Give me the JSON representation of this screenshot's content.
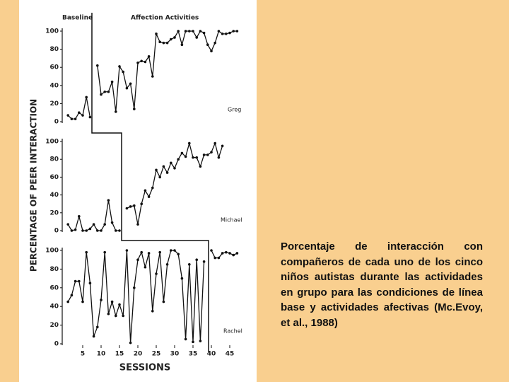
{
  "figure": {
    "ylabel": "PERCENTAGE OF PEER INTERACTION",
    "xlabel": "SESSIONS",
    "phases": [
      "Baseline",
      "Affection Activities"
    ]
  },
  "caption": "Porcentaje de interacción con compañeros de cada uno de los cinco niños autistas durante las actividades en grupo para las condiciones de línea base y actividades afectivas (Mc.Evoy, et al., 1988)",
  "chart_data": [
    {
      "type": "line",
      "label": "Greg",
      "color": "#111111",
      "x": [
        1,
        2,
        3,
        4,
        5,
        6,
        7,
        8,
        9,
        10,
        11,
        12,
        13,
        14,
        15,
        16,
        17,
        18,
        19,
        20,
        21,
        22,
        23,
        24,
        25,
        26,
        27,
        28,
        29,
        30,
        31,
        32,
        33,
        34,
        35,
        36,
        37,
        38,
        39,
        40,
        41,
        42,
        43,
        44,
        45,
        46,
        47
      ],
      "values": [
        7,
        3,
        3,
        10,
        7,
        27,
        5,
        null,
        62,
        30,
        33,
        33,
        44,
        11,
        61,
        55,
        37,
        42,
        14,
        65,
        67,
        66,
        72,
        50,
        97,
        88,
        87,
        87,
        91,
        93,
        100,
        85,
        100,
        100,
        100,
        93,
        100,
        98,
        85,
        78,
        87,
        100,
        97,
        97,
        98,
        100,
        100
      ],
      "xlim": [
        0,
        48
      ],
      "ylim": [
        0,
        100
      ],
      "yticks": [
        0,
        20,
        40,
        60,
        80,
        100
      ]
    },
    {
      "type": "line",
      "label": "Michael",
      "color": "#111111",
      "x": [
        1,
        2,
        3,
        4,
        5,
        6,
        7,
        8,
        9,
        10,
        11,
        12,
        13,
        14,
        15,
        16,
        17,
        18,
        19,
        20,
        21,
        22,
        23,
        24,
        25,
        26,
        27,
        28,
        29,
        30,
        31,
        32,
        33,
        34,
        35,
        36,
        37,
        38,
        39,
        40,
        41,
        42,
        43
      ],
      "values": [
        7,
        0,
        1,
        16,
        0,
        0,
        2,
        7,
        0,
        0,
        7,
        34,
        9,
        0,
        0,
        null,
        25,
        27,
        28,
        7,
        30,
        45,
        38,
        48,
        68,
        60,
        72,
        65,
        76,
        70,
        80,
        87,
        83,
        98,
        82,
        82,
        72,
        85,
        85,
        88,
        98,
        82,
        95
      ],
      "xlim": [
        0,
        48
      ],
      "ylim": [
        0,
        100
      ],
      "yticks": [
        0,
        20,
        40,
        60,
        80,
        100
      ]
    },
    {
      "type": "line",
      "label": "Rachel",
      "color": "#111111",
      "x": [
        1,
        2,
        3,
        4,
        5,
        6,
        7,
        8,
        9,
        10,
        11,
        12,
        13,
        14,
        15,
        16,
        17,
        18,
        19,
        20,
        21,
        22,
        23,
        24,
        25,
        26,
        27,
        28,
        29,
        30,
        31,
        32,
        33,
        34,
        35,
        36,
        37,
        38,
        39,
        40,
        41,
        42,
        43,
        44,
        45,
        46,
        47
      ],
      "values": [
        45,
        52,
        67,
        67,
        45,
        98,
        65,
        8,
        18,
        47,
        98,
        32,
        45,
        30,
        42,
        30,
        100,
        1,
        60,
        90,
        98,
        82,
        97,
        35,
        75,
        98,
        45,
        85,
        100,
        100,
        96,
        70,
        5,
        85,
        2,
        90,
        3,
        88,
        null,
        100,
        92,
        92,
        97,
        98,
        97,
        95,
        97
      ],
      "xlim": [
        0,
        48
      ],
      "ylim": [
        0,
        100
      ],
      "yticks": [
        0,
        20,
        40,
        60,
        80,
        100
      ],
      "xticks": [
        5,
        10,
        15,
        20,
        25,
        30,
        35,
        40,
        45
      ]
    }
  ]
}
